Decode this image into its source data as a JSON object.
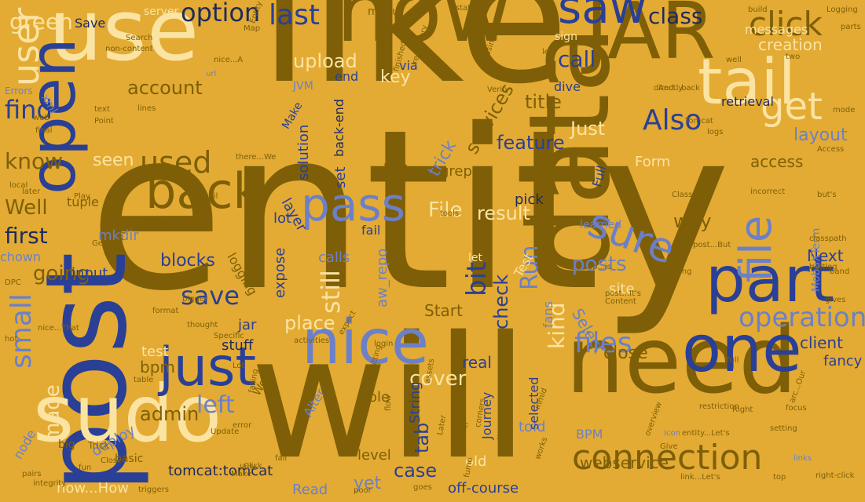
{
  "palette": {
    "background": "#E3AB33",
    "olive": "#7E5F07",
    "olive_light": "#9C7610",
    "navy": "#2A3F96",
    "periwinkle": "#6C80C8",
    "cream": "#FBE3A2",
    "dark_navy": "#1E2A5E"
  },
  "words": [
    {
      "text": "entity",
      "color": "olive"
    },
    {
      "text": "like",
      "color": "olive"
    },
    {
      "text": "will",
      "color": "olive"
    },
    {
      "text": "post",
      "color": "navy"
    },
    {
      "text": "now",
      "color": "olive"
    },
    {
      "text": "data",
      "color": "olive"
    },
    {
      "text": "use",
      "color": "cream"
    },
    {
      "text": "sudo",
      "color": "cream"
    },
    {
      "text": "need",
      "color": "olive"
    },
    {
      "text": "JAR",
      "color": "olive"
    },
    {
      "text": "open",
      "color": "navy"
    },
    {
      "text": "one",
      "color": "navy"
    },
    {
      "text": "part",
      "color": "navy"
    },
    {
      "text": "nice",
      "color": "periwinkle"
    },
    {
      "text": "tail",
      "color": "cream"
    },
    {
      "text": "just",
      "color": "navy"
    },
    {
      "text": "saw",
      "color": "navy"
    },
    {
      "text": "back",
      "color": "olive"
    },
    {
      "text": "pass",
      "color": "periwinkle"
    },
    {
      "text": "file",
      "color": "periwinkle"
    },
    {
      "text": "connection",
      "color": "olive"
    },
    {
      "text": "sure",
      "color": "periwinkle"
    },
    {
      "text": "user",
      "color": "cream"
    },
    {
      "text": "get",
      "color": "cream"
    },
    {
      "text": "click",
      "color": "olive"
    },
    {
      "text": "small",
      "color": "periwinkle"
    },
    {
      "text": "operation",
      "color": "periwinkle"
    },
    {
      "text": "used",
      "color": "olive"
    },
    {
      "text": "files",
      "color": "periwinkle"
    },
    {
      "text": "Also",
      "color": "navy"
    },
    {
      "text": "last",
      "color": "navy"
    },
    {
      "text": "option",
      "color": "dark_navy"
    },
    {
      "text": "save",
      "color": "navy"
    },
    {
      "text": "bit",
      "color": "navy"
    },
    {
      "text": "find",
      "color": "navy"
    },
    {
      "text": "class",
      "color": "dark_navy"
    },
    {
      "text": "first",
      "color": "dark_navy"
    },
    {
      "text": "still",
      "color": "cream"
    },
    {
      "text": "made",
      "color": "cream"
    },
    {
      "text": "Run",
      "color": "periwinkle"
    },
    {
      "text": "left",
      "color": "periwinkle"
    },
    {
      "text": "kind",
      "color": "cream"
    },
    {
      "text": "green",
      "color": "cream"
    },
    {
      "text": "know",
      "color": "olive"
    },
    {
      "text": "call",
      "color": "navy"
    },
    {
      "text": "posts",
      "color": "periwinkle"
    },
    {
      "text": "hit",
      "color": "olive"
    },
    {
      "text": "place",
      "color": "cream"
    },
    {
      "text": "check",
      "color": "navy"
    },
    {
      "text": "feature",
      "color": "navy"
    },
    {
      "text": "File",
      "color": "cream"
    },
    {
      "text": "upload",
      "color": "cream"
    },
    {
      "text": "account",
      "color": "olive"
    },
    {
      "text": "going",
      "color": "olive"
    },
    {
      "text": "cover",
      "color": "cream"
    },
    {
      "text": "Well",
      "color": "olive"
    },
    {
      "text": "services",
      "color": "olive"
    },
    {
      "text": "result",
      "color": "cream"
    },
    {
      "text": "key",
      "color": "cream"
    },
    {
      "text": "tab",
      "color": "navy"
    },
    {
      "text": "seen",
      "color": "cream"
    },
    {
      "text": "title",
      "color": "olive"
    },
    {
      "text": "Just",
      "color": "cream"
    },
    {
      "text": "access",
      "color": "olive"
    },
    {
      "text": "layout",
      "color": "periwinkle"
    },
    {
      "text": "way",
      "color": "olive"
    },
    {
      "text": "close",
      "color": "olive"
    },
    {
      "text": "trick",
      "color": "periwinkle"
    },
    {
      "text": "client",
      "color": "navy"
    },
    {
      "text": "Next",
      "color": "navy"
    },
    {
      "text": "case",
      "color": "navy"
    },
    {
      "text": "admin",
      "color": "olive"
    },
    {
      "text": "blocks",
      "color": "navy"
    },
    {
      "text": "creation",
      "color": "cream"
    },
    {
      "text": "webservice",
      "color": "olive"
    },
    {
      "text": "tomcat:tomcat",
      "color": "dark_navy"
    },
    {
      "text": "now...How",
      "color": "cream"
    },
    {
      "text": "off-course",
      "color": "navy"
    },
    {
      "text": "yet",
      "color": "periwinkle"
    },
    {
      "text": "real",
      "color": "navy"
    },
    {
      "text": "Read",
      "color": "periwinkle"
    },
    {
      "text": "stuff",
      "color": "dark_navy"
    },
    {
      "text": "role",
      "color": "olive"
    },
    {
      "text": "told",
      "color": "periwinkle"
    },
    {
      "text": "level",
      "color": "olive"
    },
    {
      "text": "Start",
      "color": "olive"
    },
    {
      "text": "bpm",
      "color": "olive"
    },
    {
      "text": "test",
      "color": "cream"
    },
    {
      "text": "deploy",
      "color": "periwinkle"
    },
    {
      "text": "input",
      "color": "navy"
    },
    {
      "text": "jar",
      "color": "navy"
    },
    {
      "text": "aw_repo",
      "color": "periwinkle"
    },
    {
      "text": "Form",
      "color": "cream"
    },
    {
      "text": "String",
      "color": "navy"
    },
    {
      "text": "Journey",
      "color": "navy"
    },
    {
      "text": "expose",
      "color": "navy"
    },
    {
      "text": "fail",
      "color": "navy"
    },
    {
      "text": "lot",
      "color": "navy"
    },
    {
      "text": "calls",
      "color": "periwinkle"
    },
    {
      "text": "mkdir",
      "color": "periwinkle"
    },
    {
      "text": "grep",
      "color": "olive"
    },
    {
      "text": "pick",
      "color": "dark_navy"
    },
    {
      "text": "Select",
      "color": "periwinkle"
    },
    {
      "text": "fancy",
      "color": "navy"
    },
    {
      "text": "BPM",
      "color": "periwinkle"
    },
    {
      "text": "set",
      "color": "navy"
    },
    {
      "text": "layer",
      "color": "navy"
    },
    {
      "text": "solution",
      "color": "navy"
    },
    {
      "text": "Full",
      "color": "navy"
    },
    {
      "text": "site",
      "color": "cream"
    },
    {
      "text": "run",
      "color": "olive"
    },
    {
      "text": "tuple",
      "color": "olive"
    },
    {
      "text": "chown",
      "color": "periwinkle"
    },
    {
      "text": "Save",
      "color": "dark_navy"
    },
    {
      "text": "logging",
      "color": "olive"
    },
    {
      "text": "node",
      "color": "periwinkle"
    },
    {
      "text": "end",
      "color": "navy"
    },
    {
      "text": "dive",
      "color": "navy"
    },
    {
      "text": "via",
      "color": "navy"
    },
    {
      "text": "JVM",
      "color": "periwinkle"
    },
    {
      "text": "Make",
      "color": "navy"
    },
    {
      "text": "back-end",
      "color": "dark_navy"
    },
    {
      "text": "retrieval",
      "color": "dark_navy"
    },
    {
      "text": "learned",
      "color": "periwinkle"
    },
    {
      "text": "selected",
      "color": "navy"
    },
    {
      "text": "Test",
      "color": "cream"
    },
    {
      "text": "fans",
      "color": "periwinkle"
    },
    {
      "text": "Alter",
      "color": "periwinkle"
    },
    {
      "text": "let",
      "color": "cream"
    },
    {
      "text": "MobaXTerm",
      "color": "periwinkle"
    },
    {
      "text": "messages",
      "color": "cream"
    },
    {
      "text": "server",
      "color": "cream"
    },
    {
      "text": "sign",
      "color": "cream"
    },
    {
      "text": "menu",
      "color": "olive"
    },
    {
      "text": "old",
      "color": "cream"
    },
    {
      "text": "Work",
      "color": "olive"
    },
    {
      "text": "basic",
      "color": "olive"
    },
    {
      "text": "big",
      "color": "olive"
    },
    {
      "text": "Trick",
      "color": "olive"
    },
    {
      "text": "Errors",
      "color": "periwinkle"
    },
    {
      "text": "xml",
      "color": "periwinkle"
    },
    {
      "text": "Logging",
      "color": "olive"
    },
    {
      "text": "Icon",
      "color": "periwinkle"
    },
    {
      "text": "Right",
      "color": "olive"
    },
    {
      "text": "focus",
      "color": "olive"
    },
    {
      "text": "flow",
      "color": "olive"
    },
    {
      "text": "login",
      "color": "olive"
    },
    {
      "text": "classpath",
      "color": "olive"
    },
    {
      "text": "restriction",
      "color": "olive"
    },
    {
      "text": "setting",
      "color": "olive"
    },
    {
      "text": "right-click",
      "color": "olive"
    },
    {
      "text": "link...Let's",
      "color": "olive"
    },
    {
      "text": "entity...Let's",
      "color": "olive"
    },
    {
      "text": "activities",
      "color": "olive"
    },
    {
      "text": "triggers",
      "color": "olive"
    },
    {
      "text": "pairs",
      "color": "olive"
    },
    {
      "text": "Class",
      "color": "olive"
    },
    {
      "text": "Access",
      "color": "olive"
    },
    {
      "text": "incorrect",
      "color": "olive"
    },
    {
      "text": "Specific",
      "color": "olive"
    },
    {
      "text": "bettlog",
      "color": "olive"
    },
    {
      "text": "thought",
      "color": "olive"
    },
    {
      "text": "Play",
      "color": "olive"
    },
    {
      "text": "local",
      "color": "olive"
    },
    {
      "text": "later",
      "color": "olive"
    },
    {
      "text": "Call",
      "color": "olive"
    },
    {
      "text": "Close",
      "color": "olive"
    },
    {
      "text": "Give",
      "color": "olive"
    },
    {
      "text": "Point",
      "color": "olive"
    },
    {
      "text": "text",
      "color": "olive"
    },
    {
      "text": "web",
      "color": "olive"
    },
    {
      "text": "final",
      "color": "olive"
    },
    {
      "text": "static",
      "color": "olive"
    },
    {
      "text": "build",
      "color": "olive"
    },
    {
      "text": "parts",
      "color": "olive"
    },
    {
      "text": "two",
      "color": "olive"
    },
    {
      "text": "well",
      "color": "olive"
    },
    {
      "text": "directly",
      "color": "olive"
    },
    {
      "text": "logs",
      "color": "olive"
    },
    {
      "text": "lines",
      "color": "olive"
    },
    {
      "text": "Tomcat",
      "color": "olive"
    },
    {
      "text": "finished",
      "color": "olive"
    },
    {
      "text": "repository",
      "color": "olive"
    },
    {
      "text": "Verify",
      "color": "olive"
    },
    {
      "text": "Map",
      "color": "olive"
    },
    {
      "text": "Entity",
      "color": "olive"
    },
    {
      "text": "fall",
      "color": "olive"
    },
    {
      "text": "Click",
      "color": "olive"
    },
    {
      "text": "error",
      "color": "olive"
    },
    {
      "text": "fun",
      "color": "olive"
    },
    {
      "text": "hot",
      "color": "olive"
    },
    {
      "text": "DPC",
      "color": "olive"
    },
    {
      "text": "explorer",
      "color": "olive"
    },
    {
      "text": "gives",
      "color": "olive"
    },
    {
      "text": "band",
      "color": "olive"
    },
    {
      "text": "tips",
      "color": "olive"
    },
    {
      "text": "security",
      "color": "olive"
    },
    {
      "text": "works",
      "color": "olive"
    },
    {
      "text": "full",
      "color": "olive"
    },
    {
      "text": "top",
      "color": "olive"
    },
    {
      "text": "Content",
      "color": "olive"
    },
    {
      "text": "Search",
      "color": "olive"
    },
    {
      "text": "but's",
      "color": "olive"
    },
    {
      "text": "Short",
      "color": "olive"
    },
    {
      "text": "bigger",
      "color": "olive"
    },
    {
      "text": "format",
      "color": "olive"
    },
    {
      "text": "integrity",
      "color": "olive"
    },
    {
      "text": "nice...That",
      "color": "olive"
    },
    {
      "text": "Getting",
      "color": "olive"
    },
    {
      "text": "Update",
      "color": "olive"
    },
    {
      "text": "falling",
      "color": "olive"
    },
    {
      "text": "passing",
      "color": "olive"
    },
    {
      "text": "lets",
      "color": "olive"
    },
    {
      "text": "first",
      "color": "olive"
    },
    {
      "text": "tools",
      "color": "olive"
    },
    {
      "text": "table",
      "color": "olive"
    },
    {
      "text": "little",
      "color": "olive"
    },
    {
      "text": "opening",
      "color": "olive"
    },
    {
      "text": "arc...Our",
      "color": "olive"
    },
    {
      "text": "do...is",
      "color": "olive"
    },
    {
      "text": "post...It's",
      "color": "olive"
    },
    {
      "text": "post...But",
      "color": "olive"
    },
    {
      "text": "nice...A",
      "color": "olive"
    },
    {
      "text": "there...We",
      "color": "olive"
    },
    {
      "text": "And...back",
      "color": "olive"
    },
    {
      "text": "non-content",
      "color": "olive"
    },
    {
      "text": "overview",
      "color": "olive"
    },
    {
      "text": "inmid",
      "color": "olive"
    },
    {
      "text": "assets",
      "color": "olive"
    },
    {
      "text": "corners",
      "color": "olive"
    },
    {
      "text": "expect",
      "color": "olive"
    },
    {
      "text": "hitting",
      "color": "olive"
    },
    {
      "text": "Lot",
      "color": "olive"
    },
    {
      "text": "Later",
      "color": "olive"
    },
    {
      "text": "goes",
      "color": "olive"
    },
    {
      "text": "poor",
      "color": "olive"
    },
    {
      "text": "fumo",
      "color": "olive"
    },
    {
      "text": "Make",
      "color": "olive"
    },
    {
      "text": "mail",
      "color": "olive"
    },
    {
      "text": "url",
      "color": "periwinkle"
    },
    {
      "text": "links",
      "color": "periwinkle"
    },
    {
      "text": "mode",
      "color": "olive"
    }
  ]
}
